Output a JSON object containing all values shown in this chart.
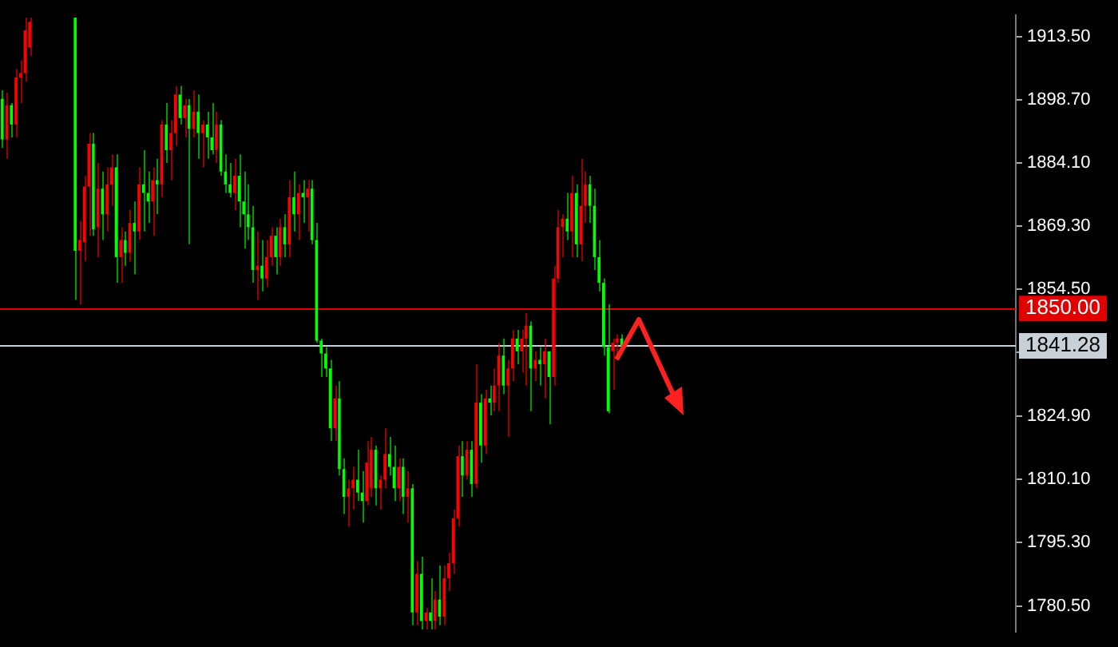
{
  "chart_data": {
    "type": "candlestick",
    "categories": [
      null,
      null,
      null,
      null,
      null,
      null,
      null,
      null,
      null,
      null,
      null,
      null,
      null,
      null,
      null,
      null,
      null,
      null,
      null,
      null,
      null,
      null,
      null,
      null,
      null,
      null,
      null,
      null,
      null,
      null,
      null,
      null,
      null,
      null,
      null,
      null,
      null,
      null,
      null,
      null,
      null,
      null,
      null,
      null,
      null,
      null,
      null,
      null,
      null,
      null,
      null,
      null,
      null,
      null,
      null,
      null,
      null,
      null,
      null,
      null,
      null,
      null,
      null,
      null,
      null,
      null,
      null,
      null,
      null,
      null,
      null,
      null,
      null,
      null,
      null,
      null,
      null,
      null,
      null,
      null,
      null,
      null,
      null,
      null,
      null,
      null,
      null,
      null,
      null,
      null,
      null,
      null,
      null,
      null,
      null,
      null,
      null,
      null,
      null,
      null,
      null,
      null,
      null,
      null,
      null,
      null,
      null,
      null,
      null,
      null,
      null,
      null,
      null,
      null,
      null,
      null,
      null,
      null,
      null,
      null,
      null,
      null,
      null,
      null,
      null,
      null,
      null,
      null,
      null,
      null,
      null,
      null,
      null,
      null,
      null,
      null,
      null,
      null,
      null,
      null,
      null,
      null,
      null,
      null,
      null,
      null,
      null,
      null,
      null,
      null,
      null,
      null,
      null,
      null,
      null,
      null,
      null,
      null,
      null,
      null,
      null,
      null,
      null,
      null,
      null,
      null,
      null,
      null,
      null,
      null,
      null,
      null,
      null,
      null,
      null,
      null,
      null,
      null,
      null,
      null,
      null,
      null,
      null,
      null,
      null,
      null,
      null,
      null,
      null,
      null,
      null,
      null,
      null,
      null,
      null,
      null,
      null,
      null,
      null,
      null,
      null,
      null,
      null,
      null,
      null,
      null,
      null,
      null,
      null,
      null,
      null,
      null,
      null,
      null,
      null,
      null,
      null,
      null,
      null,
      null,
      null,
      null,
      null
    ],
    "ohlc": [
      [
        1899,
        1901,
        1887.5,
        1889.5
      ],
      [
        1889.5,
        1900.5,
        1885,
        1897.5
      ],
      [
        1897.5,
        1898,
        1890,
        1893
      ],
      [
        1893,
        1906,
        1890,
        1904
      ],
      [
        1904,
        1908,
        1898,
        1905
      ],
      [
        1905,
        1918,
        1903,
        1915
      ],
      [
        1911,
        1918,
        1909,
        1917
      ],
      null,
      null,
      null,
      null,
      null,
      null,
      null,
      null,
      null,
      [
        1918,
        1918,
        1852,
        1863.5
      ],
      [
        1863.5,
        1870.5,
        1851,
        1866
      ],
      [
        1865.5,
        1881,
        1861,
        1878.5
      ],
      [
        1878.5,
        1891,
        1867,
        1888.5
      ],
      [
        1888.5,
        1891,
        1867,
        1868.5
      ],
      [
        1869,
        1884,
        1862,
        1878
      ],
      [
        1878,
        1882,
        1866,
        1872
      ],
      [
        1872,
        1883,
        1868,
        1879
      ],
      [
        1879,
        1886,
        1874,
        1883
      ],
      [
        1883,
        1886,
        1856,
        1862
      ],
      [
        1862,
        1869,
        1856,
        1866
      ],
      [
        1866,
        1868,
        1860,
        1863
      ],
      [
        1863,
        1873,
        1861,
        1870
      ],
      [
        1870,
        1875,
        1858,
        1868
      ],
      [
        1868,
        1883,
        1866,
        1879
      ],
      [
        1879,
        1887,
        1868,
        1877
      ],
      [
        1877,
        1882,
        1870,
        1875
      ],
      [
        1875,
        1883,
        1867,
        1880
      ],
      [
        1880,
        1885,
        1872,
        1879
      ],
      [
        1879,
        1894,
        1876,
        1893
      ],
      [
        1893,
        1898,
        1884,
        1887
      ],
      [
        1887,
        1894,
        1880,
        1891
      ],
      [
        1891,
        1902,
        1888,
        1900
      ],
      [
        1900,
        1902,
        1893,
        1894.5
      ],
      [
        1894.5,
        1899,
        1890,
        1897.5
      ],
      [
        1897.5,
        1899,
        1865,
        1892
      ],
      [
        1892,
        1901,
        1890,
        1896
      ],
      [
        1896,
        1900,
        1885,
        1891
      ],
      [
        1891,
        1894,
        1883,
        1893
      ],
      [
        1893,
        1896,
        1885,
        1890
      ],
      [
        1890,
        1898,
        1886,
        1887
      ],
      [
        1887,
        1896,
        1884,
        1893
      ],
      [
        1893,
        1894,
        1881,
        1882
      ],
      [
        1882,
        1886,
        1877,
        1879
      ],
      [
        1879,
        1884,
        1876,
        1877
      ],
      [
        1877,
        1885,
        1873,
        1881
      ],
      [
        1881,
        1886,
        1869,
        1875
      ],
      [
        1875,
        1882,
        1864,
        1872
      ],
      [
        1872,
        1879,
        1866,
        1869
      ],
      [
        1869,
        1874,
        1856,
        1859
      ],
      [
        1859,
        1868,
        1852,
        1860
      ],
      [
        1860,
        1866,
        1854,
        1857
      ],
      [
        1857,
        1866,
        1855,
        1862
      ],
      [
        1862,
        1869,
        1860,
        1867
      ],
      [
        1867,
        1869,
        1858,
        1862
      ],
      [
        1862,
        1871,
        1860,
        1869
      ],
      [
        1869,
        1872,
        1862,
        1865
      ],
      [
        1865,
        1880,
        1862,
        1876
      ],
      [
        1876,
        1882,
        1868,
        1872
      ],
      [
        1872,
        1879,
        1866,
        1877
      ],
      [
        1877,
        1880,
        1870,
        1876
      ],
      [
        1876,
        1880,
        1868,
        1878
      ],
      [
        1878,
        1880,
        1865,
        1866
      ],
      [
        1866,
        1870,
        1842,
        1842.5
      ],
      [
        1842.5,
        1843,
        1834,
        1839.5
      ],
      [
        1839.5,
        1841,
        1834,
        1836
      ],
      [
        1836,
        1838,
        1819,
        1822
      ],
      [
        1822,
        1832,
        1819,
        1829
      ],
      [
        1829,
        1833,
        1811,
        1812.5
      ],
      [
        1812.5,
        1815,
        1802,
        1806
      ],
      [
        1806,
        1810,
        1799,
        1808
      ],
      [
        1808,
        1813,
        1803,
        1810
      ],
      [
        1810,
        1817,
        1805,
        1807
      ],
      [
        1807,
        1812,
        1800,
        1805
      ],
      [
        1805,
        1819,
        1804,
        1814
      ],
      [
        1808,
        1820,
        1806,
        1817
      ],
      [
        1817,
        1818,
        1804,
        1808
      ],
      [
        1808,
        1811,
        1803,
        1810
      ],
      [
        1810,
        1822,
        1808,
        1816
      ],
      [
        1816,
        1820,
        1811,
        1813
      ],
      [
        1813,
        1818,
        1805,
        1808
      ],
      [
        1808,
        1815,
        1805,
        1813
      ],
      [
        1813,
        1815,
        1802,
        1806
      ],
      [
        1806,
        1812,
        1800,
        1808
      ],
      [
        1808,
        1809,
        1776,
        1779
      ],
      [
        1779,
        1791,
        1776,
        1788
      ],
      [
        1788,
        1792,
        1775,
        1777
      ],
      [
        1777,
        1780,
        1775,
        1779
      ],
      [
        1779,
        1787,
        1775,
        1777
      ],
      [
        1777,
        1784,
        1775,
        1782
      ],
      [
        1782,
        1790,
        1776,
        1778
      ],
      [
        1778,
        1790,
        1776,
        1787
      ],
      [
        1787,
        1793,
        1784,
        1790.5
      ],
      [
        1790.5,
        1803,
        1788,
        1801
      ],
      [
        1801,
        1818,
        1799,
        1815.5
      ],
      [
        1815.5,
        1819,
        1806,
        1811
      ],
      [
        1811,
        1819,
        1810,
        1817
      ],
      [
        1817,
        1819,
        1806,
        1809
      ],
      [
        1809,
        1837,
        1808,
        1828
      ],
      [
        1828,
        1830,
        1814,
        1818
      ],
      [
        1818,
        1831,
        1816,
        1829
      ],
      [
        1829,
        1832,
        1825,
        1828
      ],
      [
        1828,
        1836,
        1826,
        1832
      ],
      [
        1832,
        1842,
        1826,
        1839
      ],
      [
        1839,
        1843,
        1830,
        1832
      ],
      [
        1832,
        1838,
        1820,
        1836
      ],
      [
        1836,
        1845,
        1833,
        1843
      ],
      [
        1843,
        1845,
        1837,
        1840
      ],
      [
        1840,
        1845,
        1835,
        1843
      ],
      [
        1843,
        1849,
        1832,
        1846
      ],
      [
        1846,
        1847,
        1826,
        1836
      ],
      [
        1836,
        1840,
        1833,
        1838
      ],
      [
        1838,
        1841,
        1832,
        1837
      ],
      [
        1837,
        1843,
        1829,
        1840
      ],
      [
        1840,
        1840,
        1823,
        1834
      ],
      [
        1834,
        1860,
        1832,
        1857
      ],
      [
        1857,
        1873,
        1856,
        1869
      ],
      [
        1869,
        1872,
        1862,
        1871
      ],
      [
        1871,
        1877,
        1866,
        1868
      ],
      [
        1868,
        1881,
        1862,
        1877
      ],
      [
        1877,
        1879,
        1862,
        1865
      ],
      [
        1865,
        1885,
        1861,
        1874
      ],
      [
        1874,
        1882,
        1870,
        1879
      ],
      [
        1879,
        1881,
        1870,
        1874
      ],
      [
        1874,
        1878,
        1859,
        1862
      ],
      [
        1862,
        1866,
        1854,
        1856
      ],
      [
        1856,
        1857,
        1839,
        1841
      ],
      [
        1841,
        1851,
        1825.5,
        1826
      ],
      [
        1840,
        1843,
        1831,
        1842
      ],
      [
        1842,
        1844,
        1838,
        1843
      ],
      [
        1843,
        1844,
        1840,
        1841.28
      ],
      null,
      null,
      null,
      null,
      null,
      null,
      null,
      null,
      null,
      null,
      null,
      null,
      null,
      null,
      null,
      null,
      null,
      null,
      null,
      null,
      null,
      null,
      null,
      null,
      null,
      null,
      null,
      null,
      null,
      null,
      null,
      null,
      null,
      null,
      null,
      null,
      null,
      null,
      null,
      null,
      null,
      null,
      null,
      null,
      null,
      null,
      null,
      null,
      null,
      null,
      null,
      null,
      null,
      null,
      null,
      null,
      null,
      null,
      null,
      null,
      null,
      null,
      null,
      null,
      null,
      null,
      null,
      null,
      null,
      null,
      null,
      null,
      null,
      null,
      null,
      null,
      null,
      null,
      null,
      null,
      null,
      null,
      null,
      null,
      null,
      null
    ],
    "colors": [
      "#00ff00",
      "#ff0000",
      "#00ff00",
      "#ff0000",
      "#ff0000",
      "#ff0000",
      "#ff0000",
      null,
      null,
      null,
      null,
      null,
      null,
      null,
      null,
      null,
      "#00ff00",
      "#ff0000",
      "#ff0000",
      "#ff0000",
      "#00ff00",
      "#ff0000",
      "#00ff00",
      "#ff0000",
      "#ff0000",
      "#00ff00",
      "#ff0000",
      "#00ff00",
      "#ff0000",
      "#00ff00",
      "#ff0000",
      "#00ff00",
      "#00ff00",
      "#ff0000",
      "#00ff00",
      "#ff0000",
      "#00ff00",
      "#ff0000",
      "#ff0000",
      "#00ff00",
      "#ff0000",
      "#00ff00",
      "#ff0000",
      "#00ff00",
      "#ff0000",
      "#00ff00",
      "#00ff00",
      "#ff0000",
      "#00ff00",
      "#00ff00",
      "#00ff00",
      "#ff0000",
      "#00ff00",
      "#00ff00",
      "#00ff00",
      "#00ff00",
      "#ff0000",
      "#00ff00",
      "#ff0000",
      "#ff0000",
      "#00ff00",
      "#ff0000",
      "#00ff00",
      "#ff0000",
      "#00ff00",
      "#ff0000",
      "#00ff00",
      "#ff0000",
      "#00ff00",
      "#00ff00",
      "#00ff00",
      "#00ff00",
      "#00ff00",
      "#ff0000",
      "#00ff00",
      "#00ff00",
      "#ff0000",
      "#ff0000",
      "#00ff00",
      "#00ff00",
      "#ff0000",
      "#ff0000",
      "#00ff00",
      "#ff0000",
      "#ff0000",
      "#00ff00",
      "#00ff00",
      "#ff0000",
      "#00ff00",
      "#ff0000",
      "#00ff00",
      "#ff0000",
      "#00ff00",
      "#ff0000",
      "#00ff00",
      "#ff0000",
      "#00ff00",
      "#ff0000",
      "#ff0000",
      "#ff0000",
      "#ff0000",
      "#00ff00",
      "#ff0000",
      "#00ff00",
      "#ff0000",
      "#00ff00",
      "#ff0000",
      "#00ff00",
      "#ff0000",
      "#ff0000",
      "#00ff00",
      "#ff0000",
      "#ff0000",
      "#00ff00",
      "#ff0000",
      "#ff0000",
      "#00ff00",
      "#ff0000",
      "#00ff00",
      "#ff0000",
      "#00ff00",
      "#ff0000",
      "#ff0000",
      "#ff0000",
      "#00ff00",
      "#ff0000",
      "#00ff00",
      "#ff0000",
      "#ff0000",
      "#00ff00",
      "#00ff00",
      "#00ff00",
      "#00ff00",
      "#00ff00",
      "#ff0000",
      "#ff0000",
      "#00ff00",
      null,
      null,
      null,
      null,
      null,
      null,
      null,
      null,
      null,
      null,
      null,
      null,
      null,
      null,
      null,
      null,
      null,
      null,
      null,
      null,
      null,
      null,
      null,
      null,
      null,
      null,
      null,
      null,
      null,
      null,
      null,
      null,
      null,
      null,
      null,
      null,
      null,
      null,
      null,
      null,
      null,
      null,
      null,
      null,
      null,
      null,
      null,
      null,
      null,
      null,
      null,
      null,
      null,
      null,
      null,
      null,
      null,
      null,
      null,
      null,
      null,
      null,
      null,
      null,
      null,
      null,
      null,
      null,
      null,
      null,
      null,
      null,
      null,
      null,
      null,
      null,
      null,
      null,
      null,
      null,
      null,
      null,
      null,
      null,
      null,
      null
    ],
    "ylim": [
      1774.5,
      1918.5
    ],
    "yticks": [
      {
        "value": 1780.5,
        "label": "1780.50"
      },
      {
        "value": 1795.3,
        "label": "1795.30"
      },
      {
        "value": 1810.1,
        "label": "1810.10"
      },
      {
        "value": 1824.9,
        "label": "1824.90"
      },
      {
        "value": 1839.7,
        "label": null
      },
      {
        "value": 1854.5,
        "label": "1854.50"
      },
      {
        "value": 1869.3,
        "label": "1869.30"
      },
      {
        "value": 1884.1,
        "label": "1884.10"
      },
      {
        "value": 1898.7,
        "label": "1898.70"
      },
      {
        "value": 1913.5,
        "label": "1913.50"
      }
    ],
    "ref_lines": [
      {
        "axis": "y",
        "value": 1850,
        "label": "1850.00",
        "color": "#e00000"
      },
      {
        "axis": "y",
        "value": 1841.28,
        "label": "1841.28",
        "color": "#c8d0d8"
      }
    ],
    "tick_labels": "y",
    "grid": false,
    "legend": false
  }
}
